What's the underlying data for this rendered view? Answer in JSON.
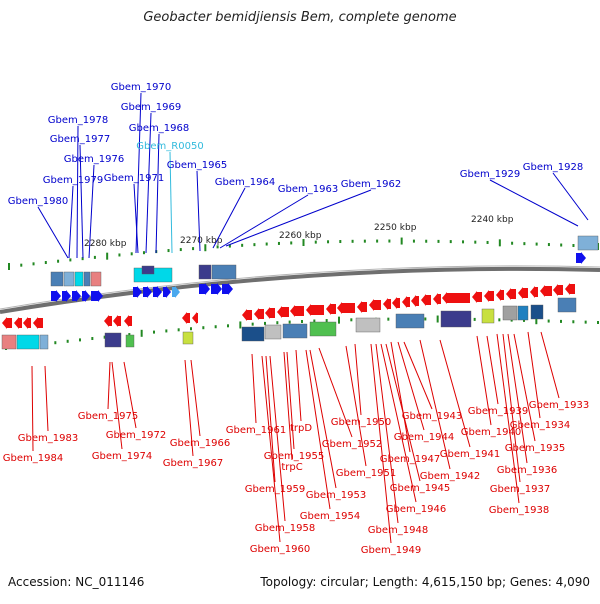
{
  "title": "Geobacter bemidjiensis Bem, complete genome",
  "footer": {
    "accession_label": "Accession:",
    "accession": "NC_011146",
    "topology_label": "Topology:",
    "topology": "circular",
    "length_label": "Length:",
    "length": "4,615,150 bp",
    "genes_label": "Genes:",
    "genes": "4,090"
  },
  "colors": {
    "forward_label": "#0000cc",
    "rna_label": "#33bbdd",
    "reverse_label": "#dd0000",
    "backbone": "#888888",
    "tick": "#228822"
  },
  "scale_labels": [
    "2280 kbp",
    "2270 kbp",
    "2260 kbp",
    "2250 kbp",
    "2240 kbp"
  ],
  "forward_genes": [
    "Gbem_1970",
    "Gbem_1969",
    "Gbem_1968",
    "Gbem_R0050",
    "Gbem_1978",
    "Gbem_1977",
    "Gbem_1976",
    "Gbem_1979",
    "Gbem_1971",
    "Gbem_1965",
    "Gbem_1980",
    "Gbem_1964",
    "Gbem_1963",
    "Gbem_1962",
    "Gbem_1929",
    "Gbem_1928"
  ],
  "reverse_genes": [
    "Gbem_1975",
    "Gbem_1983",
    "Gbem_1972",
    "Gbem_1984",
    "Gbem_1974",
    "Gbem_1966",
    "Gbem_1967",
    "Gbem_1961",
    "trpD",
    "Gbem_1955",
    "trpC",
    "Gbem_1959",
    "Gbem_1958",
    "Gbem_1960",
    "Gbem_1952",
    "Gbem_1950",
    "Gbem_1953",
    "Gbem_1954",
    "Gbem_1951",
    "Gbem_1943",
    "Gbem_1944",
    "Gbem_1947",
    "Gbem_1945",
    "Gbem_1946",
    "Gbem_1948",
    "Gbem_1949",
    "Gbem_1942",
    "Gbem_1941",
    "Gbem_1940",
    "Gbem_1939",
    "Gbem_1934",
    "Gbem_1933",
    "Gbem_1935",
    "Gbem_1936",
    "Gbem_1937",
    "Gbem_1938"
  ]
}
